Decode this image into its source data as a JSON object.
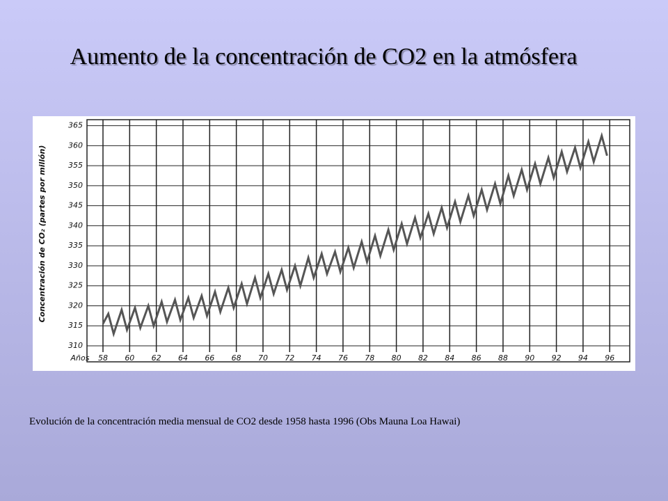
{
  "title": "Aumento de la concentración de CO2 en la atmósfera",
  "caption": "Evolución de la concentración media mensual de CO2 desde 1958 hasta 1996 (Obs Mauna Loa Hawai)",
  "chart_data": {
    "type": "line",
    "y_label": "Concentración de CO₂ (partes por millón)",
    "x_label": "Años",
    "xlim": [
      56.8,
      97.5
    ],
    "ylim": [
      306,
      366.5
    ],
    "xticks": [
      58,
      60,
      62,
      64,
      66,
      68,
      70,
      72,
      74,
      76,
      78,
      80,
      82,
      84,
      86,
      88,
      90,
      92,
      94,
      96
    ],
    "yticks": [
      310,
      315,
      320,
      325,
      330,
      335,
      340,
      345,
      350,
      355,
      360,
      365
    ],
    "grid": true,
    "series": [
      {
        "name": "CO2",
        "color": "#555555",
        "x": [
          58,
          58.4,
          58.8,
          59.4,
          59.8,
          60.4,
          60.8,
          61.4,
          61.8,
          62.4,
          62.8,
          63.4,
          63.8,
          64.4,
          64.8,
          65.4,
          65.8,
          66.4,
          66.8,
          67.4,
          67.8,
          68.4,
          68.8,
          69.4,
          69.8,
          70.4,
          70.8,
          71.4,
          71.8,
          72.4,
          72.8,
          73.4,
          73.8,
          74.4,
          74.8,
          75.4,
          75.8,
          76.4,
          76.8,
          77.4,
          77.8,
          78.4,
          78.8,
          79.4,
          79.8,
          80.4,
          80.8,
          81.4,
          81.8,
          82.4,
          82.8,
          83.4,
          83.8,
          84.4,
          84.8,
          85.4,
          85.8,
          86.4,
          86.8,
          87.4,
          87.8,
          88.4,
          88.8,
          89.4,
          89.8,
          90.4,
          90.8,
          91.4,
          91.8,
          92.4,
          92.8,
          93.4,
          93.8,
          94.4,
          94.8,
          95.4,
          95.8
        ],
        "values": [
          315.5,
          318,
          313,
          319,
          314,
          319.5,
          314.5,
          320,
          315,
          321,
          316,
          321.5,
          316.5,
          322,
          317,
          322.5,
          317.5,
          323.5,
          318.5,
          324.5,
          319.5,
          325.5,
          320.5,
          327,
          322,
          328,
          323,
          329,
          324,
          330,
          325,
          332,
          327,
          333,
          328,
          333.5,
          328.5,
          334.5,
          329.5,
          336,
          331,
          337.5,
          332.5,
          339,
          334,
          340.5,
          335.5,
          342,
          337,
          343,
          338,
          344.5,
          339.5,
          346,
          341,
          347.5,
          342.5,
          349,
          344,
          350.5,
          345.5,
          352.5,
          347.5,
          354,
          349,
          355.5,
          350.5,
          357,
          352,
          358.5,
          353.5,
          359.5,
          354.5,
          361,
          356,
          362.5,
          357.5
        ]
      }
    ]
  }
}
